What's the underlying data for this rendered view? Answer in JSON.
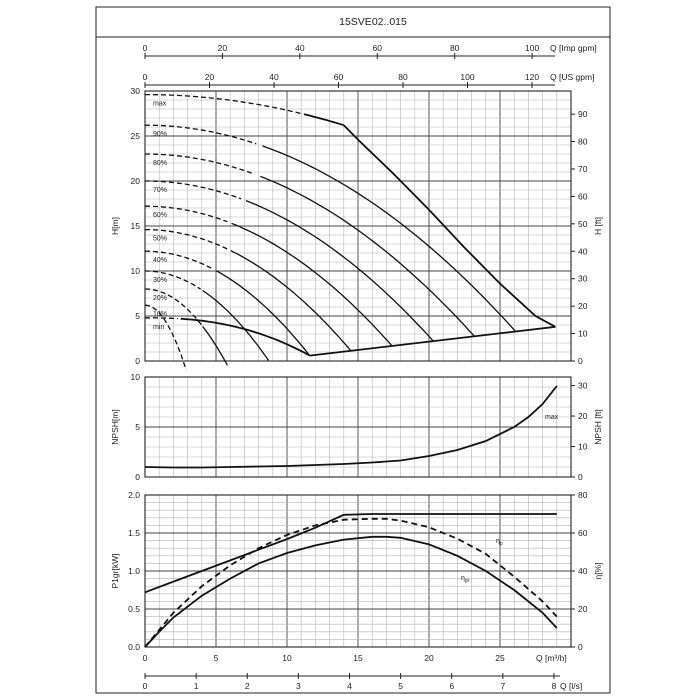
{
  "title": "15SVE02..015",
  "top_axes": [
    {
      "label": "Q [Imp gpm]",
      "ticks": [
        "0",
        "20",
        "40",
        "60",
        "80",
        "100"
      ],
      "max": 110.05
    },
    {
      "label": "Q [US gpm]",
      "ticks": [
        "0",
        "20",
        "40",
        "60",
        "80",
        "100",
        "120"
      ],
      "max": 132.1
    }
  ],
  "bottom_axes": [
    {
      "label": "Q [m³/h]",
      "ticks": [
        "0",
        "5",
        "10",
        "15",
        "20",
        "25"
      ]
    },
    {
      "label": "Q [l/s]",
      "ticks": [
        "0",
        "1",
        "2",
        "3",
        "4",
        "5",
        "6",
        "7",
        "8"
      ]
    }
  ],
  "chart_data": [
    {
      "type": "line",
      "id": "head",
      "ylabel": "H[m]",
      "ylabel_right": "H [ft]",
      "xlim": [
        0,
        30
      ],
      "ylim": [
        0,
        30
      ],
      "yticks": [
        "0",
        "5",
        "10",
        "15",
        "20",
        "25",
        "30"
      ],
      "yticks_right": [
        "0",
        "10",
        "20",
        "30",
        "40",
        "50",
        "60",
        "70",
        "80",
        "90"
      ],
      "ft_per_m": 3.28084,
      "grid": true,
      "speed_labels": [
        "max",
        "90%",
        "80%",
        "70%",
        "60%",
        "50%",
        "40%",
        "30%",
        "20%",
        "10%",
        "min"
      ],
      "series": [
        {
          "speed": 1.0,
          "h0": 29.6,
          "qmax": 28.9,
          "dashed_until": 11.0
        },
        {
          "speed": 0.9,
          "h0": 26.2,
          "qmax": 26.1,
          "dashed_until": 8.0
        },
        {
          "speed": 0.8,
          "h0": 23.0,
          "qmax": 23.2,
          "dashed_until": 8.0
        },
        {
          "speed": 0.7,
          "h0": 20.0,
          "qmax": 20.3,
          "dashed_until": 7.0
        },
        {
          "speed": 0.6,
          "h0": 17.2,
          "qmax": 17.4,
          "dashed_until": 6.0
        },
        {
          "speed": 0.5,
          "h0": 14.6,
          "qmax": 14.5,
          "dashed_until": 6.0
        },
        {
          "speed": 0.4,
          "h0": 12.2,
          "qmax": 11.6,
          "dashed_until": 5.0
        },
        {
          "speed": 0.3,
          "h0": 10.0,
          "qmax": 8.7,
          "dashed_until": 4.0
        },
        {
          "speed": 0.2,
          "h0": 8.0,
          "qmax": 5.8,
          "dashed_until": 4.0
        },
        {
          "speed": 0.1,
          "h0": 6.2,
          "qmax": 2.9,
          "dashed_until": 3.0
        },
        {
          "speed": 0.0,
          "h0": 4.8,
          "qmax": 0.0,
          "dashed_until": 2.5
        }
      ],
      "power_limit": [
        [
          14.0,
          26.2
        ],
        [
          15.0,
          24.6
        ],
        [
          17.5,
          20.8
        ],
        [
          20.0,
          16.8
        ],
        [
          22.5,
          12.6
        ],
        [
          25.0,
          8.6
        ],
        [
          27.5,
          5.0
        ],
        [
          28.9,
          3.8
        ]
      ],
      "lower_limit": [
        [
          11.6,
          0.6
        ],
        [
          28.9,
          3.8
        ]
      ]
    },
    {
      "type": "line",
      "id": "npsh",
      "ylabel": "NPSH[m]",
      "ylabel_right": "NPSH [ft]",
      "xlim": [
        0,
        30
      ],
      "ylim": [
        0,
        10
      ],
      "yticks": [
        "0",
        "5",
        "10"
      ],
      "yticks_right": [
        "0",
        "10",
        "20",
        "30"
      ],
      "grid": true,
      "series": [
        {
          "name": "max",
          "x": [
            0,
            2,
            4,
            6,
            8,
            10,
            12,
            14,
            16,
            18,
            20,
            22,
            24,
            26,
            27,
            28,
            29
          ],
          "y": [
            1.0,
            0.95,
            0.95,
            1.0,
            1.05,
            1.1,
            1.2,
            1.3,
            1.45,
            1.65,
            2.1,
            2.7,
            3.6,
            5.0,
            6.0,
            7.3,
            9.1
          ]
        }
      ]
    },
    {
      "type": "line",
      "id": "power_efficiency",
      "ylabel": "P1gr[kW]",
      "ylabel_right": "η[%]",
      "xlim": [
        0,
        30
      ],
      "ylim": [
        0,
        2.0
      ],
      "yticks": [
        "0.0",
        "0.5",
        "1.0",
        "1.5",
        "2.0"
      ],
      "yticks_right": [
        "0",
        "20",
        "40",
        "60",
        "80"
      ],
      "eta_max": 80,
      "grid": true,
      "series": [
        {
          "name": "P1gr",
          "axis": "left",
          "style": "solid",
          "x": [
            0,
            2,
            4,
            6,
            8,
            10,
            12,
            14,
            16,
            18,
            20,
            22,
            24,
            26,
            28,
            29
          ],
          "y": [
            0.72,
            0.86,
            1.0,
            1.14,
            1.28,
            1.42,
            1.57,
            1.74,
            1.75,
            1.75,
            1.75,
            1.75,
            1.75,
            1.75,
            1.75,
            1.75
          ]
        },
        {
          "name": "ηp",
          "label_main": "η",
          "label_sub": "p",
          "axis": "right",
          "style": "dashed",
          "x": [
            0,
            1,
            2,
            4,
            6,
            8,
            10,
            12,
            14,
            16,
            17,
            18,
            20,
            22,
            24,
            26,
            28,
            29
          ],
          "y": [
            0,
            9,
            18,
            32,
            43,
            52,
            59,
            64,
            67,
            67.5,
            67.5,
            66.5,
            63,
            57,
            49,
            37,
            24,
            16
          ]
        },
        {
          "name": "ηgr",
          "label_main": "η",
          "label_sub": "gr",
          "axis": "right",
          "style": "solid",
          "x": [
            0,
            1,
            2,
            4,
            6,
            8,
            10,
            12,
            14,
            16,
            17,
            18,
            20,
            22,
            24,
            26,
            28,
            29
          ],
          "y": [
            0,
            8,
            15.5,
            27,
            36,
            44,
            49.5,
            53.5,
            56.5,
            58,
            58,
            57.5,
            54,
            48,
            40,
            30,
            18,
            10
          ]
        }
      ]
    }
  ]
}
